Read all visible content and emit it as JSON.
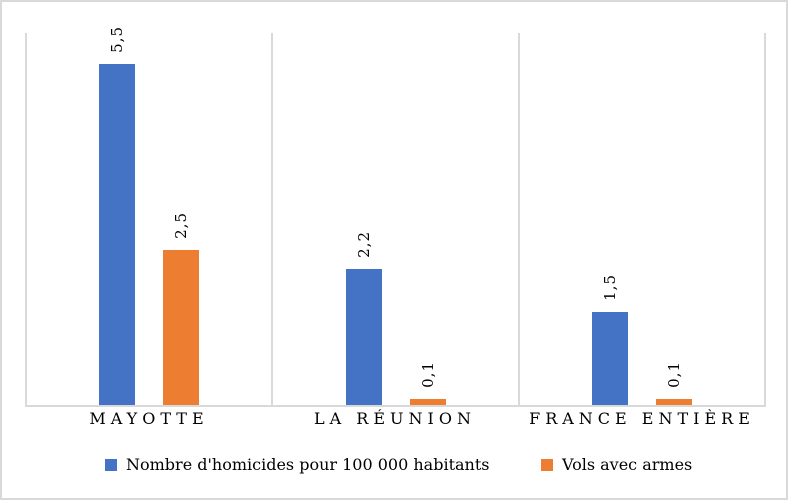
{
  "window": {
    "background_color": "#FFFFFF",
    "border_color": "#D9D9D9"
  },
  "chart_data": {
    "type": "bar",
    "title": "",
    "categories": [
      "MAYOTTE",
      "LA RÉUNION",
      "FRANCE ENTIÈRE"
    ],
    "series": [
      {
        "name": "Nombre d'homicides pour 100 000 habitants",
        "color": "#4472C4",
        "values": [
          5.5,
          2.2,
          1.5
        ],
        "value_labels": [
          "5,5",
          "2,2",
          "1,5"
        ]
      },
      {
        "name": "Vols avec armes",
        "color": "#ED7D31",
        "values": [
          2.5,
          0.1,
          0.1
        ],
        "value_labels": [
          "2,5",
          "0,1",
          "0,1"
        ]
      }
    ],
    "ylim": [
      0,
      6
    ],
    "y_axis_tick_labels_visible": false,
    "data_label_rotation_deg": 90,
    "legend_position": "bottom",
    "grid": {
      "category_dividers": true
    },
    "axis_color": "#D9D9D9",
    "text_color": "#000000"
  }
}
